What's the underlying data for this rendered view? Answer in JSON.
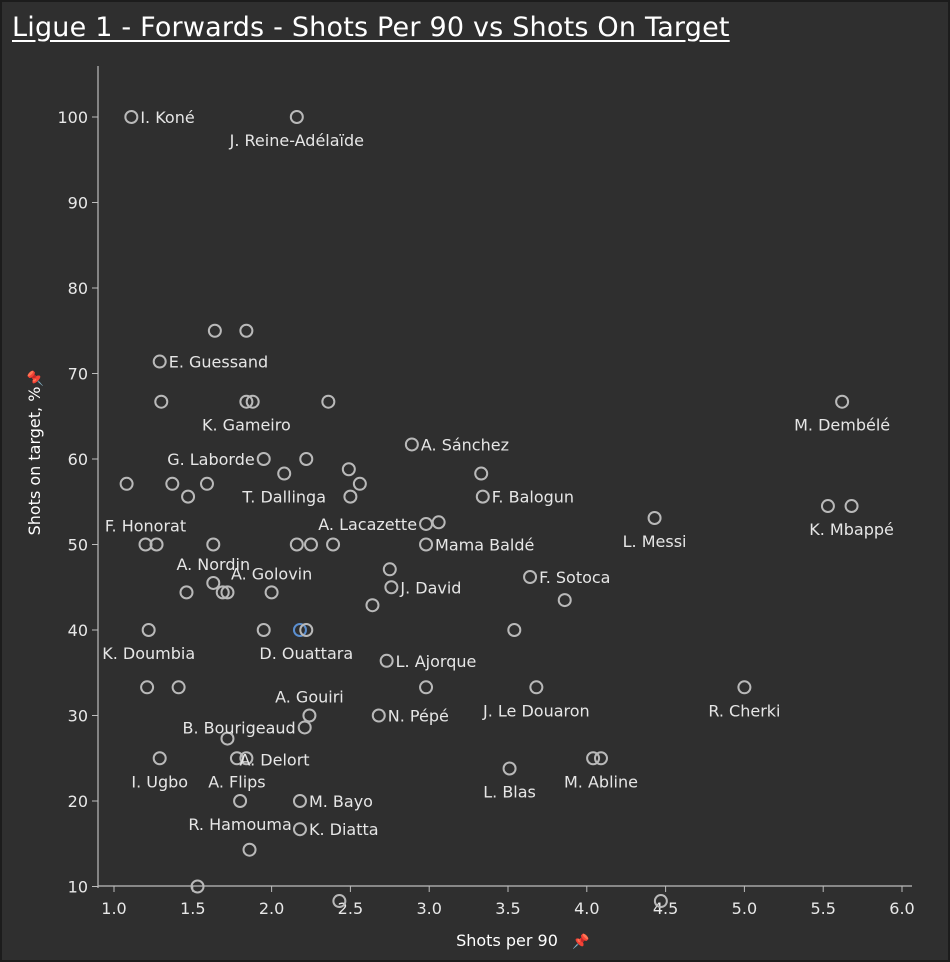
{
  "title": "Ligue 1 - Forwards - Shots Per 90 vs Shots On Target",
  "colors": {
    "background": "#2f2f2f",
    "point": "#b9b9b9",
    "highlight": "#5b8fd0",
    "text": "#e6e6e6"
  },
  "icons": {
    "axis_pin": "pin-icon"
  },
  "chart_data": {
    "type": "scatter",
    "title": "Ligue 1 - Forwards - Shots Per 90 vs Shots On Target",
    "xlabel": "Shots per 90",
    "ylabel": "Shots on target, %",
    "xlim": [
      0.93,
      6.05
    ],
    "ylim": [
      8.5,
      106
    ],
    "xticks": [
      "1.0",
      "1.5",
      "2.0",
      "2.5",
      "3.0",
      "3.5",
      "4.0",
      "4.5",
      "5.0",
      "5.5",
      "6.0"
    ],
    "xtick_values": [
      1.0,
      1.5,
      2.0,
      2.5,
      3.0,
      3.5,
      4.0,
      4.5,
      5.0,
      5.5,
      6.0
    ],
    "yticks": [
      "10",
      "20",
      "30",
      "40",
      "50",
      "60",
      "70",
      "80",
      "90",
      "100"
    ],
    "ytick_values": [
      10,
      20,
      30,
      40,
      50,
      60,
      70,
      80,
      90,
      100
    ],
    "grid": false,
    "points": [
      {
        "x": 1.11,
        "y": 100,
        "label": "I. Koné",
        "label_pos": "right"
      },
      {
        "x": 2.16,
        "y": 100,
        "label": "J. Reine-Adélaïde",
        "label_pos": "below"
      },
      {
        "x": 1.64,
        "y": 75
      },
      {
        "x": 1.84,
        "y": 75
      },
      {
        "x": 1.29,
        "y": 71.4,
        "label": "E. Guessand",
        "label_pos": "right"
      },
      {
        "x": 1.3,
        "y": 66.7
      },
      {
        "x": 1.84,
        "y": 66.7,
        "label": "K. Gameiro",
        "label_pos": "below"
      },
      {
        "x": 1.88,
        "y": 66.7
      },
      {
        "x": 2.36,
        "y": 66.7
      },
      {
        "x": 5.62,
        "y": 66.7,
        "label": "M. Dembélé",
        "label_pos": "below"
      },
      {
        "x": 2.89,
        "y": 61.7,
        "label": "A. Sánchez",
        "label_pos": "right"
      },
      {
        "x": 1.95,
        "y": 60,
        "label": "G. Laborde",
        "label_pos": "left"
      },
      {
        "x": 2.22,
        "y": 60
      },
      {
        "x": 2.08,
        "y": 58.3,
        "label": "T. Dallinga",
        "label_pos": "below"
      },
      {
        "x": 2.49,
        "y": 58.8
      },
      {
        "x": 3.33,
        "y": 58.3
      },
      {
        "x": 1.08,
        "y": 57.1
      },
      {
        "x": 1.37,
        "y": 57.1
      },
      {
        "x": 1.59,
        "y": 57.1
      },
      {
        "x": 2.56,
        "y": 57.1
      },
      {
        "x": 1.47,
        "y": 55.6
      },
      {
        "x": 2.5,
        "y": 55.6
      },
      {
        "x": 3.34,
        "y": 55.6,
        "label": "F. Balogun",
        "label_pos": "right"
      },
      {
        "x": 5.53,
        "y": 54.5
      },
      {
        "x": 5.68,
        "y": 54.5,
        "label": "K. Mbappé",
        "label_pos": "below"
      },
      {
        "x": 4.43,
        "y": 53.1,
        "label": "L. Messi",
        "label_pos": "below"
      },
      {
        "x": 2.98,
        "y": 52.4,
        "label": "A. Lacazette",
        "label_pos": "left"
      },
      {
        "x": 3.06,
        "y": 52.6
      },
      {
        "x": 1.2,
        "y": 50,
        "label": "F. Honorat",
        "label_pos": "above"
      },
      {
        "x": 1.27,
        "y": 50
      },
      {
        "x": 1.63,
        "y": 50
      },
      {
        "x": 2.16,
        "y": 50
      },
      {
        "x": 2.25,
        "y": 50
      },
      {
        "x": 2.39,
        "y": 50
      },
      {
        "x": 2.98,
        "y": 50,
        "label": "Mama Baldé",
        "label_pos": "right"
      },
      {
        "x": 1.63,
        "y": 45.5,
        "label": "A. Nordin",
        "label_pos": "above"
      },
      {
        "x": 1.46,
        "y": 44.4
      },
      {
        "x": 1.69,
        "y": 44.4
      },
      {
        "x": 1.72,
        "y": 44.4
      },
      {
        "x": 2.0,
        "y": 44.4,
        "label": "A. Golovin",
        "label_pos": "above"
      },
      {
        "x": 2.75,
        "y": 47.1
      },
      {
        "x": 2.76,
        "y": 45,
        "label": "J. David",
        "label_pos": "right"
      },
      {
        "x": 3.64,
        "y": 46.2,
        "label": "F. Sotoca",
        "label_pos": "right"
      },
      {
        "x": 2.64,
        "y": 42.9
      },
      {
        "x": 3.86,
        "y": 43.5
      },
      {
        "x": 1.22,
        "y": 40,
        "label": "K. Doumbia",
        "label_pos": "below"
      },
      {
        "x": 1.95,
        "y": 40
      },
      {
        "x": 2.18,
        "y": 40,
        "highlight": true
      },
      {
        "x": 2.22,
        "y": 40,
        "label": "D. Ouattara",
        "label_pos": "below"
      },
      {
        "x": 3.54,
        "y": 40
      },
      {
        "x": 2.73,
        "y": 36.4,
        "label": "L. Ajorque",
        "label_pos": "right"
      },
      {
        "x": 1.21,
        "y": 33.3
      },
      {
        "x": 1.41,
        "y": 33.3
      },
      {
        "x": 2.98,
        "y": 33.3
      },
      {
        "x": 3.68,
        "y": 33.3,
        "label": "J. Le Douaron",
        "label_pos": "below"
      },
      {
        "x": 5.0,
        "y": 33.3,
        "label": "R. Cherki",
        "label_pos": "below"
      },
      {
        "x": 2.24,
        "y": 30,
        "label": "A. Gouiri",
        "label_pos": "above"
      },
      {
        "x": 2.68,
        "y": 30,
        "label": "N. Pépé",
        "label_pos": "right"
      },
      {
        "x": 2.21,
        "y": 28.6,
        "label": "B. Bourigeaud",
        "label_pos": "left"
      },
      {
        "x": 1.72,
        "y": 27.3,
        "label": "A. Delort",
        "label_pos": "below-right"
      },
      {
        "x": 1.29,
        "y": 25,
        "label": "I. Ugbo",
        "label_pos": "below"
      },
      {
        "x": 1.78,
        "y": 25,
        "label": "A. Flips",
        "label_pos": "below"
      },
      {
        "x": 1.84,
        "y": 25
      },
      {
        "x": 4.04,
        "y": 25
      },
      {
        "x": 4.09,
        "y": 25,
        "label": "M. Abline",
        "label_pos": "below"
      },
      {
        "x": 3.51,
        "y": 23.8,
        "label": "L. Blas",
        "label_pos": "below"
      },
      {
        "x": 1.8,
        "y": 20,
        "label": "R. Hamouma",
        "label_pos": "below"
      },
      {
        "x": 2.18,
        "y": 20,
        "label": "M. Bayo",
        "label_pos": "right"
      },
      {
        "x": 2.18,
        "y": 16.7,
        "label": "K. Diatta",
        "label_pos": "right"
      },
      {
        "x": 1.86,
        "y": 14.3
      },
      {
        "x": 1.53,
        "y": 10
      },
      {
        "x": 2.43,
        "y": 8.3
      },
      {
        "x": 4.47,
        "y": 8.3
      }
    ]
  }
}
